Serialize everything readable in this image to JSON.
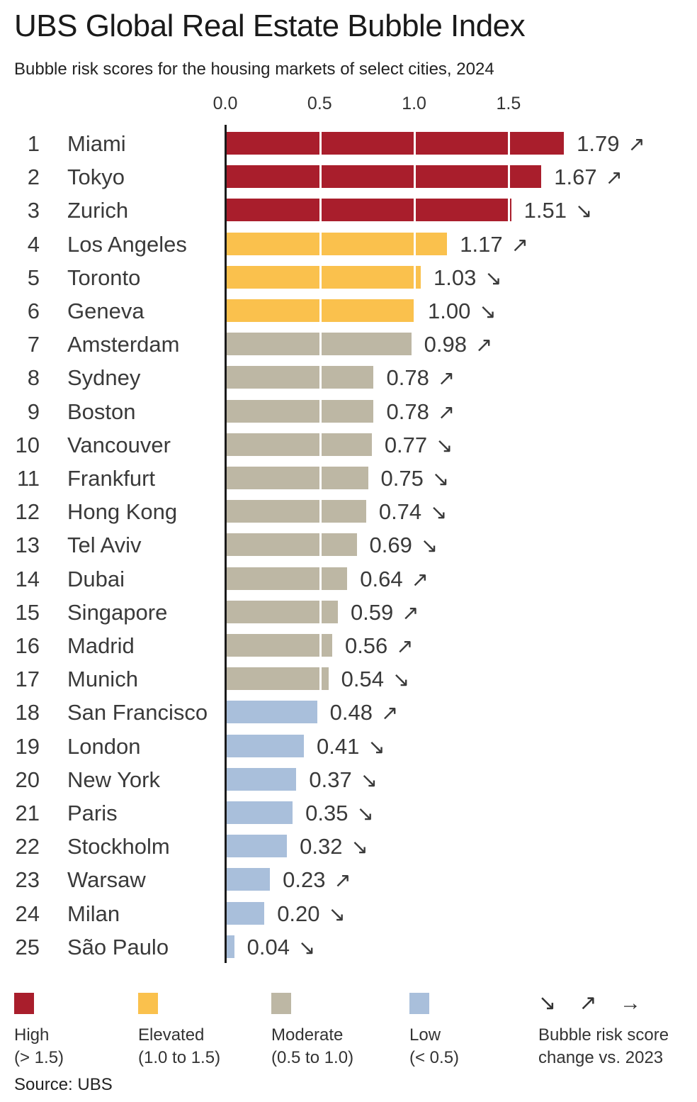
{
  "title": "UBS Global Real Estate Bubble Index",
  "subtitle": "Bubble risk scores for the housing markets of select cities, 2024",
  "source": "Source: UBS",
  "colors": {
    "high": "#A91E2C",
    "elevated": "#FAC14D",
    "moderate": "#BDB7A4",
    "low": "#A9BFDB"
  },
  "chart_data": {
    "type": "bar",
    "orientation": "horizontal",
    "title": "UBS Global Real Estate Bubble Index",
    "subtitle": "Bubble risk scores for the housing markets of select cities, 2024",
    "xlabel": "Bubble risk score",
    "x_ticks": [
      "0.0",
      "0.5",
      "1.0",
      "1.5"
    ],
    "x_tick_values": [
      0.0,
      0.5,
      1.0,
      1.5
    ],
    "xlim": [
      0,
      1.875
    ],
    "grid": "white vertical lines over bars at 0.5 intervals",
    "rows": [
      {
        "rank": "1",
        "city": "Miami",
        "value": "1.79",
        "numeric": 1.79,
        "change": "up",
        "arrow": "↗",
        "category": "high"
      },
      {
        "rank": "2",
        "city": "Tokyo",
        "value": "1.67",
        "numeric": 1.67,
        "change": "up",
        "arrow": "↗",
        "category": "high"
      },
      {
        "rank": "3",
        "city": "Zurich",
        "value": "1.51",
        "numeric": 1.51,
        "change": "down",
        "arrow": "↘",
        "category": "high"
      },
      {
        "rank": "4",
        "city": "Los Angeles",
        "value": "1.17",
        "numeric": 1.17,
        "change": "up",
        "arrow": "↗",
        "category": "elevated"
      },
      {
        "rank": "5",
        "city": "Toronto",
        "value": "1.03",
        "numeric": 1.03,
        "change": "down",
        "arrow": "↘",
        "category": "elevated"
      },
      {
        "rank": "6",
        "city": "Geneva",
        "value": "1.00",
        "numeric": 1.0,
        "change": "down",
        "arrow": "↘",
        "category": "elevated"
      },
      {
        "rank": "7",
        "city": "Amsterdam",
        "value": "0.98",
        "numeric": 0.98,
        "change": "up",
        "arrow": "↗",
        "category": "moderate"
      },
      {
        "rank": "8",
        "city": "Sydney",
        "value": "0.78",
        "numeric": 0.78,
        "change": "up",
        "arrow": "↗",
        "category": "moderate"
      },
      {
        "rank": "9",
        "city": "Boston",
        "value": "0.78",
        "numeric": 0.78,
        "change": "up",
        "arrow": "↗",
        "category": "moderate"
      },
      {
        "rank": "10",
        "city": "Vancouver",
        "value": "0.77",
        "numeric": 0.77,
        "change": "down",
        "arrow": "↘",
        "category": "moderate"
      },
      {
        "rank": "11",
        "city": "Frankfurt",
        "value": "0.75",
        "numeric": 0.75,
        "change": "down",
        "arrow": "↘",
        "category": "moderate"
      },
      {
        "rank": "12",
        "city": "Hong Kong",
        "value": "0.74",
        "numeric": 0.74,
        "change": "down",
        "arrow": "↘",
        "category": "moderate"
      },
      {
        "rank": "13",
        "city": "Tel Aviv",
        "value": "0.69",
        "numeric": 0.69,
        "change": "down",
        "arrow": "↘",
        "category": "moderate"
      },
      {
        "rank": "14",
        "city": "Dubai",
        "value": "0.64",
        "numeric": 0.64,
        "change": "up",
        "arrow": "↗",
        "category": "moderate"
      },
      {
        "rank": "15",
        "city": "Singapore",
        "value": "0.59",
        "numeric": 0.59,
        "change": "up",
        "arrow": "↗",
        "category": "moderate"
      },
      {
        "rank": "16",
        "city": "Madrid",
        "value": "0.56",
        "numeric": 0.56,
        "change": "up",
        "arrow": "↗",
        "category": "moderate"
      },
      {
        "rank": "17",
        "city": "Munich",
        "value": "0.54",
        "numeric": 0.54,
        "change": "down",
        "arrow": "↘",
        "category": "moderate"
      },
      {
        "rank": "18",
        "city": "San Francisco",
        "value": "0.48",
        "numeric": 0.48,
        "change": "up",
        "arrow": "↗",
        "category": "low"
      },
      {
        "rank": "19",
        "city": "London",
        "value": "0.41",
        "numeric": 0.41,
        "change": "down",
        "arrow": "↘",
        "category": "low"
      },
      {
        "rank": "20",
        "city": "New York",
        "value": "0.37",
        "numeric": 0.37,
        "change": "down",
        "arrow": "↘",
        "category": "low"
      },
      {
        "rank": "21",
        "city": "Paris",
        "value": "0.35",
        "numeric": 0.35,
        "change": "down",
        "arrow": "↘",
        "category": "low"
      },
      {
        "rank": "22",
        "city": "Stockholm",
        "value": "0.32",
        "numeric": 0.32,
        "change": "down",
        "arrow": "↘",
        "category": "low"
      },
      {
        "rank": "23",
        "city": "Warsaw",
        "value": "0.23",
        "numeric": 0.23,
        "change": "up",
        "arrow": "↗",
        "category": "low"
      },
      {
        "rank": "24",
        "city": "Milan",
        "value": "0.20",
        "numeric": 0.2,
        "change": "down",
        "arrow": "↘",
        "category": "low"
      },
      {
        "rank": "25",
        "city": "São Paulo",
        "value": "0.04",
        "numeric": 0.04,
        "change": "down",
        "arrow": "↘",
        "category": "low"
      }
    ]
  },
  "legend": {
    "items": [
      {
        "label": "High",
        "range": "(> 1.5)",
        "color_key": "high"
      },
      {
        "label": "Elevated",
        "range": "(1.0 to 1.5)",
        "color_key": "elevated"
      },
      {
        "label": "Moderate",
        "range": "(0.5 to 1.0)",
        "color_key": "moderate"
      },
      {
        "label": "Low",
        "range": "(< 0.5)",
        "color_key": "low"
      }
    ],
    "arrows_glyphs": "↘ ↗ →",
    "arrows_label_line1": "Bubble risk score",
    "arrows_label_line2": "change vs. 2023"
  }
}
